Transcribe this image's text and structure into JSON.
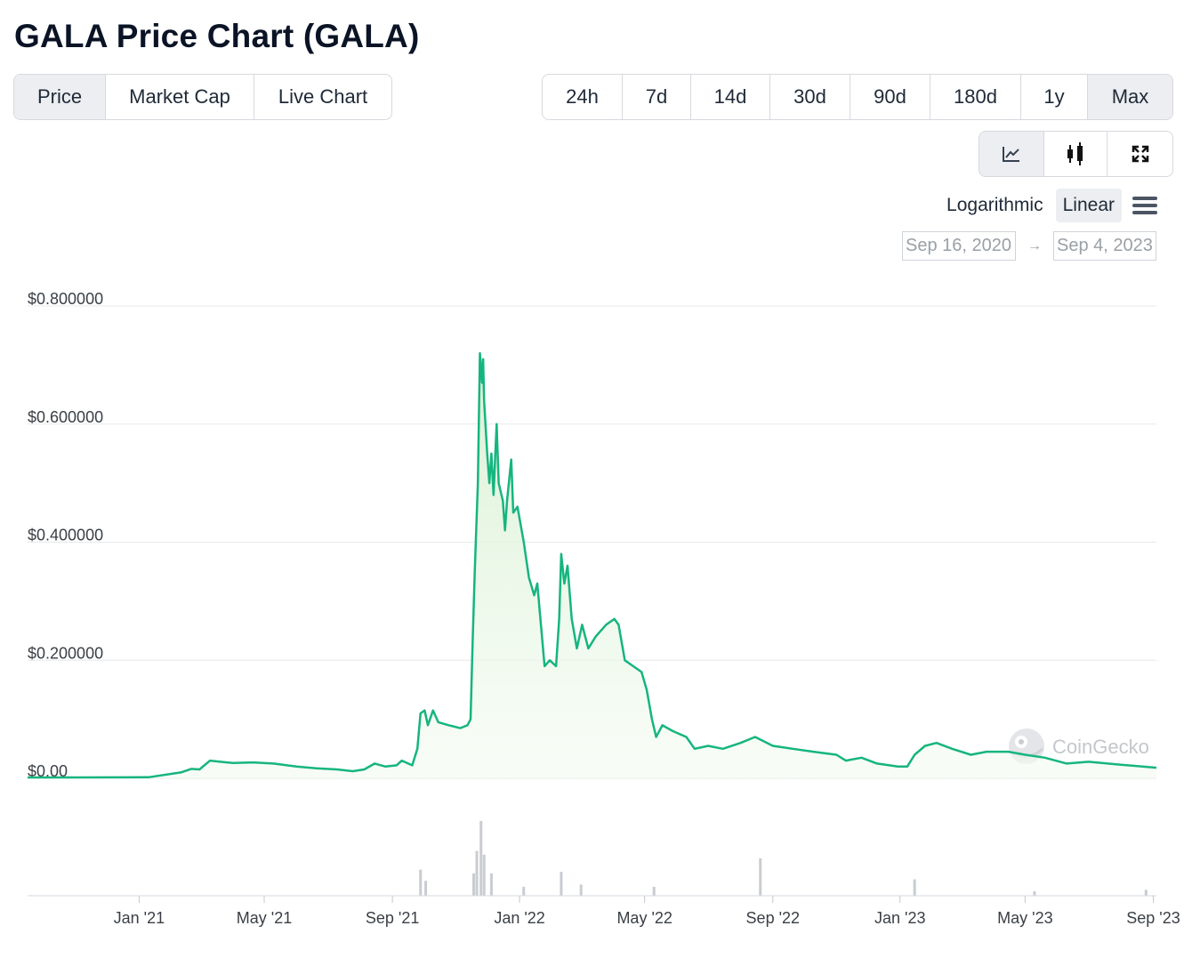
{
  "header": {
    "title": "GALA Price Chart (GALA)"
  },
  "tabs": [
    {
      "label": "Price",
      "active": true
    },
    {
      "label": "Market Cap",
      "active": false
    },
    {
      "label": "Live Chart",
      "active": false
    }
  ],
  "ranges": [
    {
      "label": "24h",
      "active": false
    },
    {
      "label": "7d",
      "active": false
    },
    {
      "label": "14d",
      "active": false
    },
    {
      "label": "30d",
      "active": false
    },
    {
      "label": "90d",
      "active": false
    },
    {
      "label": "180d",
      "active": false
    },
    {
      "label": "1y",
      "active": false
    },
    {
      "label": "Max",
      "active": true
    }
  ],
  "view_buttons": [
    {
      "icon": "line-chart-icon",
      "active": true
    },
    {
      "icon": "candlestick-icon",
      "active": false
    },
    {
      "icon": "fullscreen-icon",
      "active": false
    }
  ],
  "scale": {
    "logarithmic_label": "Logarithmic",
    "linear_label": "Linear",
    "active": "Linear"
  },
  "date_range": {
    "from": "Sep 16, 2020",
    "arrow": "→",
    "to": "Sep 4, 2023"
  },
  "watermark": {
    "text": "CoinGecko"
  },
  "colors": {
    "line": "#16b57f",
    "fill": "#e9f7e4",
    "grid": "#e6e8eb",
    "volume": "#c9ccd1",
    "active_bg": "#eceef1"
  },
  "chart_data": {
    "type": "area",
    "title": "",
    "xlabel": "",
    "ylabel": "",
    "x_range": [
      "2020-09-16",
      "2023-09-04"
    ],
    "ylim": [
      0,
      0.8
    ],
    "y_ticks": [
      {
        "value": 0.8,
        "label": "$0.800000"
      },
      {
        "value": 0.6,
        "label": "$0.600000"
      },
      {
        "value": 0.4,
        "label": "$0.400000"
      },
      {
        "value": 0.2,
        "label": "$0.200000"
      },
      {
        "value": 0,
        "label": "$0.00"
      }
    ],
    "x_ticks": [
      {
        "date": "2021-01-01",
        "label": "Jan '21"
      },
      {
        "date": "2021-05-01",
        "label": "May '21"
      },
      {
        "date": "2021-09-01",
        "label": "Sep '21"
      },
      {
        "date": "2022-01-01",
        "label": "Jan '22"
      },
      {
        "date": "2022-05-01",
        "label": "May '22"
      },
      {
        "date": "2022-09-01",
        "label": "Sep '22"
      },
      {
        "date": "2023-01-01",
        "label": "Jan '23"
      },
      {
        "date": "2023-05-01",
        "label": "May '23"
      },
      {
        "date": "2023-09-01",
        "label": "Sep '23"
      }
    ],
    "grid": true,
    "series": [
      {
        "kind": "price",
        "points": [
          [
            "2020-09-16",
            0.0015
          ],
          [
            "2020-11-01",
            0.0015
          ],
          [
            "2020-12-15",
            0.0016
          ],
          [
            "2021-01-10",
            0.0018
          ],
          [
            "2021-02-10",
            0.01
          ],
          [
            "2021-02-20",
            0.016
          ],
          [
            "2021-02-28",
            0.015
          ],
          [
            "2021-03-10",
            0.03
          ],
          [
            "2021-03-20",
            0.028
          ],
          [
            "2021-04-01",
            0.026
          ],
          [
            "2021-04-20",
            0.027
          ],
          [
            "2021-05-10",
            0.025
          ],
          [
            "2021-06-01",
            0.02
          ],
          [
            "2021-06-20",
            0.017
          ],
          [
            "2021-07-10",
            0.015
          ],
          [
            "2021-07-25",
            0.012
          ],
          [
            "2021-08-05",
            0.015
          ],
          [
            "2021-08-15",
            0.025
          ],
          [
            "2021-08-25",
            0.02
          ],
          [
            "2021-09-05",
            0.022
          ],
          [
            "2021-09-10",
            0.03
          ],
          [
            "2021-09-20",
            0.022
          ],
          [
            "2021-09-25",
            0.05
          ],
          [
            "2021-09-28",
            0.11
          ],
          [
            "2021-10-02",
            0.115
          ],
          [
            "2021-10-05",
            0.09
          ],
          [
            "2021-10-10",
            0.115
          ],
          [
            "2021-10-15",
            0.095
          ],
          [
            "2021-10-25",
            0.09
          ],
          [
            "2021-11-05",
            0.085
          ],
          [
            "2021-11-12",
            0.09
          ],
          [
            "2021-11-15",
            0.1
          ],
          [
            "2021-11-17",
            0.23
          ],
          [
            "2021-11-19",
            0.35
          ],
          [
            "2021-11-22",
            0.5
          ],
          [
            "2021-11-24",
            0.72
          ],
          [
            "2021-11-26",
            0.67
          ],
          [
            "2021-11-27",
            0.71
          ],
          [
            "2021-11-28",
            0.64
          ],
          [
            "2021-12-01",
            0.55
          ],
          [
            "2021-12-03",
            0.5
          ],
          [
            "2021-12-05",
            0.55
          ],
          [
            "2021-12-07",
            0.48
          ],
          [
            "2021-12-10",
            0.6
          ],
          [
            "2021-12-12",
            0.5
          ],
          [
            "2021-12-16",
            0.47
          ],
          [
            "2021-12-18",
            0.42
          ],
          [
            "2021-12-20",
            0.47
          ],
          [
            "2021-12-24",
            0.54
          ],
          [
            "2021-12-26",
            0.45
          ],
          [
            "2021-12-30",
            0.46
          ],
          [
            "2022-01-05",
            0.4
          ],
          [
            "2022-01-10",
            0.34
          ],
          [
            "2022-01-15",
            0.31
          ],
          [
            "2022-01-18",
            0.33
          ],
          [
            "2022-01-22",
            0.25
          ],
          [
            "2022-01-25",
            0.19
          ],
          [
            "2022-01-30",
            0.2
          ],
          [
            "2022-02-05",
            0.19
          ],
          [
            "2022-02-08",
            0.27
          ],
          [
            "2022-02-10",
            0.38
          ],
          [
            "2022-02-13",
            0.33
          ],
          [
            "2022-02-16",
            0.36
          ],
          [
            "2022-02-20",
            0.27
          ],
          [
            "2022-02-25",
            0.22
          ],
          [
            "2022-03-02",
            0.26
          ],
          [
            "2022-03-08",
            0.22
          ],
          [
            "2022-03-15",
            0.24
          ],
          [
            "2022-03-25",
            0.26
          ],
          [
            "2022-04-02",
            0.27
          ],
          [
            "2022-04-06",
            0.26
          ],
          [
            "2022-04-12",
            0.2
          ],
          [
            "2022-04-20",
            0.19
          ],
          [
            "2022-04-28",
            0.18
          ],
          [
            "2022-05-03",
            0.15
          ],
          [
            "2022-05-08",
            0.1
          ],
          [
            "2022-05-12",
            0.07
          ],
          [
            "2022-05-18",
            0.09
          ],
          [
            "2022-05-28",
            0.08
          ],
          [
            "2022-06-10",
            0.07
          ],
          [
            "2022-06-18",
            0.05
          ],
          [
            "2022-07-01",
            0.055
          ],
          [
            "2022-07-15",
            0.05
          ],
          [
            "2022-08-01",
            0.06
          ],
          [
            "2022-08-15",
            0.07
          ],
          [
            "2022-09-01",
            0.055
          ],
          [
            "2022-09-20",
            0.05
          ],
          [
            "2022-10-10",
            0.045
          ],
          [
            "2022-11-01",
            0.04
          ],
          [
            "2022-11-10",
            0.03
          ],
          [
            "2022-11-25",
            0.035
          ],
          [
            "2022-12-10",
            0.025
          ],
          [
            "2022-12-30",
            0.02
          ],
          [
            "2023-01-08",
            0.02
          ],
          [
            "2023-01-15",
            0.04
          ],
          [
            "2023-01-25",
            0.055
          ],
          [
            "2023-02-05",
            0.06
          ],
          [
            "2023-02-20",
            0.05
          ],
          [
            "2023-03-10",
            0.04
          ],
          [
            "2023-03-25",
            0.045
          ],
          [
            "2023-04-15",
            0.045
          ],
          [
            "2023-05-01",
            0.04
          ],
          [
            "2023-05-20",
            0.035
          ],
          [
            "2023-06-10",
            0.025
          ],
          [
            "2023-07-01",
            0.028
          ],
          [
            "2023-08-01",
            0.023
          ],
          [
            "2023-09-04",
            0.018
          ]
        ]
      },
      {
        "kind": "volume",
        "max_relative": 1,
        "points": [
          [
            "2021-09-28",
            0.35
          ],
          [
            "2021-10-03",
            0.2
          ],
          [
            "2021-11-18",
            0.3
          ],
          [
            "2021-11-21",
            0.6
          ],
          [
            "2021-11-25",
            1.0
          ],
          [
            "2021-11-28",
            0.55
          ],
          [
            "2021-12-05",
            0.3
          ],
          [
            "2022-01-05",
            0.12
          ],
          [
            "2022-02-10",
            0.32
          ],
          [
            "2022-03-01",
            0.15
          ],
          [
            "2022-05-10",
            0.12
          ],
          [
            "2022-08-20",
            0.5
          ],
          [
            "2023-01-15",
            0.22
          ],
          [
            "2023-05-10",
            0.06
          ],
          [
            "2023-08-25",
            0.08
          ]
        ]
      }
    ]
  }
}
